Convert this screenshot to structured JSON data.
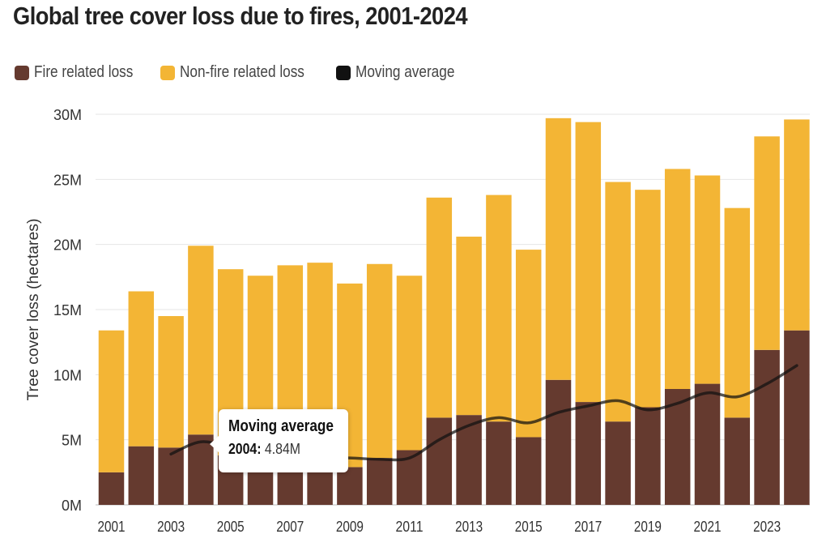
{
  "title": "Global tree cover loss due to fires, 2001-2024",
  "legend": [
    {
      "label": "Fire related loss",
      "color": "#653A2F"
    },
    {
      "label": "Non-fire related loss",
      "color": "#F3B535"
    },
    {
      "label": "Moving average",
      "color": "#111111"
    }
  ],
  "tooltip": {
    "title": "Moving average",
    "year": "2004:",
    "value": "4.84M"
  },
  "chart_data": {
    "type": "bar",
    "stacked": true,
    "title": "Global tree cover loss due to fires, 2001-2024",
    "ylabel": "Tree cover loss (hectares)",
    "xlabel": "",
    "ylim": [
      0,
      30
    ],
    "y_unit": "M",
    "y_ticks": [
      "0M",
      "5M",
      "10M",
      "15M",
      "20M",
      "25M",
      "30M"
    ],
    "x_tick_labels": [
      "2001",
      "2003",
      "2005",
      "2007",
      "2009",
      "2011",
      "2013",
      "2015",
      "2017",
      "2019",
      "2021",
      "2023"
    ],
    "grid": true,
    "legend_position": "top-left",
    "categories": [
      "2001",
      "2002",
      "2003",
      "2004",
      "2005",
      "2006",
      "2007",
      "2008",
      "2009",
      "2010",
      "2011",
      "2012",
      "2013",
      "2014",
      "2015",
      "2016",
      "2017",
      "2018",
      "2019",
      "2020",
      "2021",
      "2022",
      "2023",
      "2024"
    ],
    "series": [
      {
        "name": "Fire related loss",
        "color": "#653A2F",
        "values": [
          2.5,
          4.5,
          4.4,
          5.4,
          3.8,
          3.0,
          3.3,
          3.5,
          2.9,
          3.6,
          4.2,
          6.7,
          6.9,
          6.4,
          5.2,
          9.6,
          7.9,
          6.4,
          7.5,
          8.9,
          9.3,
          6.7,
          11.9,
          13.4
        ]
      },
      {
        "name": "Non-fire related loss",
        "color": "#F3B535",
        "values": [
          10.9,
          11.9,
          10.1,
          14.5,
          14.3,
          14.6,
          15.1,
          15.1,
          14.1,
          14.9,
          13.4,
          16.9,
          13.7,
          17.4,
          14.4,
          20.1,
          21.5,
          18.4,
          16.7,
          16.9,
          16.0,
          16.1,
          16.4,
          16.2
        ]
      },
      {
        "name": "Moving average",
        "color": "#111111",
        "type": "line",
        "x": [
          "2003",
          "2004",
          "2005",
          "2006",
          "2007",
          "2008",
          "2009",
          "2010",
          "2011",
          "2012",
          "2013",
          "2014",
          "2015",
          "2016",
          "2017",
          "2018",
          "2019",
          "2020",
          "2021",
          "2022",
          "2023",
          "2024"
        ],
        "values": [
          3.9,
          4.84,
          4.4,
          4.0,
          3.8,
          3.6,
          3.6,
          3.5,
          3.6,
          5.0,
          6.1,
          6.7,
          6.3,
          7.1,
          7.6,
          8.0,
          7.3,
          7.8,
          8.6,
          8.3,
          9.3,
          10.7
        ]
      }
    ]
  }
}
